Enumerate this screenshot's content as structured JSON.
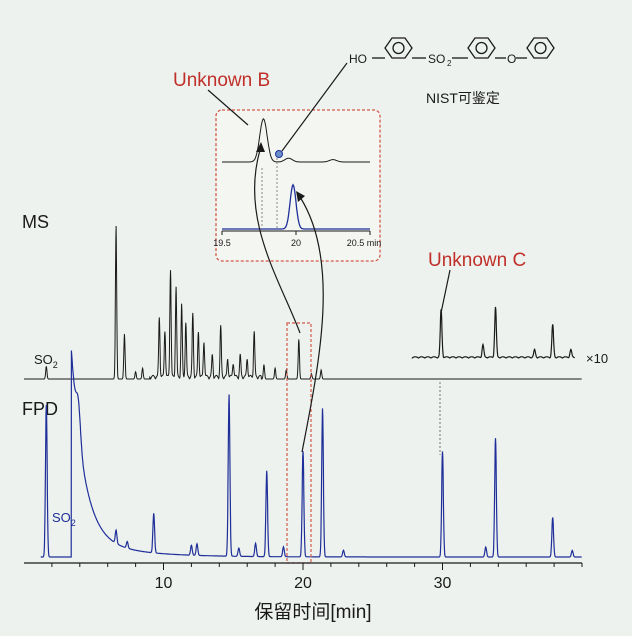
{
  "chart_data": {
    "type": "line",
    "xlabel": "保留时间[min]",
    "xlim": [
      0,
      40
    ],
    "xticks": [
      10,
      20,
      30
    ],
    "colors": {
      "ms": "#1a1a1a",
      "fpd": "#1f2f9a",
      "red": "#c0302a",
      "inset_box": "#d35a4a"
    },
    "labels": {
      "ms": "MS",
      "fpd": "FPD",
      "so2": "SO",
      "so2_sub": "2",
      "times10": "×10",
      "unknown_b": "Unknown B",
      "unknown_c": "Unknown C",
      "nist": "NIST可鉴定",
      "molecule_ho": "HO",
      "molecule_so2": "SO",
      "molecule_so2_sub": "2",
      "molecule_o": "O"
    },
    "series": [
      {
        "name": "MS",
        "peaks": [
          [
            1.6,
            0.07
          ],
          [
            6.6,
            0.85
          ],
          [
            7.2,
            0.25
          ],
          [
            8.0,
            0.04
          ],
          [
            8.5,
            0.06
          ],
          [
            9.7,
            0.33
          ],
          [
            10.1,
            0.26
          ],
          [
            10.5,
            0.6
          ],
          [
            10.9,
            0.5
          ],
          [
            11.3,
            0.4
          ],
          [
            11.6,
            0.3
          ],
          [
            12.1,
            0.35
          ],
          [
            12.5,
            0.25
          ],
          [
            12.9,
            0.2
          ],
          [
            13.5,
            0.12
          ],
          [
            14.1,
            0.28
          ],
          [
            14.6,
            0.1
          ],
          [
            15.0,
            0.08
          ],
          [
            15.5,
            0.12
          ],
          [
            16.0,
            0.1
          ],
          [
            16.5,
            0.25
          ],
          [
            17.2,
            0.08
          ],
          [
            18.0,
            0.06
          ],
          [
            18.8,
            0.05
          ],
          [
            19.7,
            0.22
          ],
          [
            20.6,
            0.03
          ],
          [
            21.3,
            0.05
          ]
        ]
      },
      {
        "name": "MS ×10",
        "x_range": [
          27.8,
          39.5
        ],
        "peaks": [
          [
            29.9,
            0.38
          ],
          [
            32.9,
            0.1
          ],
          [
            33.8,
            0.4
          ],
          [
            36.6,
            0.06
          ],
          [
            37.9,
            0.26
          ],
          [
            39.2,
            0.06
          ]
        ]
      },
      {
        "name": "FPD",
        "peaks": [
          [
            1.6,
            0.92
          ],
          [
            6.6,
            0.08
          ],
          [
            7.4,
            0.04
          ],
          [
            9.3,
            0.24
          ],
          [
            12.0,
            0.06
          ],
          [
            12.4,
            0.07
          ],
          [
            14.7,
            0.98
          ],
          [
            15.4,
            0.05
          ],
          [
            16.6,
            0.08
          ],
          [
            17.4,
            0.52
          ],
          [
            18.6,
            0.06
          ],
          [
            20.0,
            0.64
          ],
          [
            21.4,
            0.9
          ],
          [
            22.9,
            0.04
          ],
          [
            30.0,
            0.64
          ],
          [
            33.1,
            0.06
          ],
          [
            33.8,
            0.72
          ],
          [
            37.9,
            0.24
          ],
          [
            39.3,
            0.04
          ]
        ]
      }
    ],
    "inset": {
      "xlim": [
        19.5,
        20.5
      ],
      "xticks": [
        "19.5",
        "20",
        "20.5 min"
      ],
      "ms_peaks": [
        [
          19.78,
          0.9
        ],
        [
          19.95,
          0.08
        ],
        [
          20.25,
          0.05
        ]
      ],
      "fpd_peaks": [
        [
          19.98,
          0.85
        ]
      ]
    }
  }
}
